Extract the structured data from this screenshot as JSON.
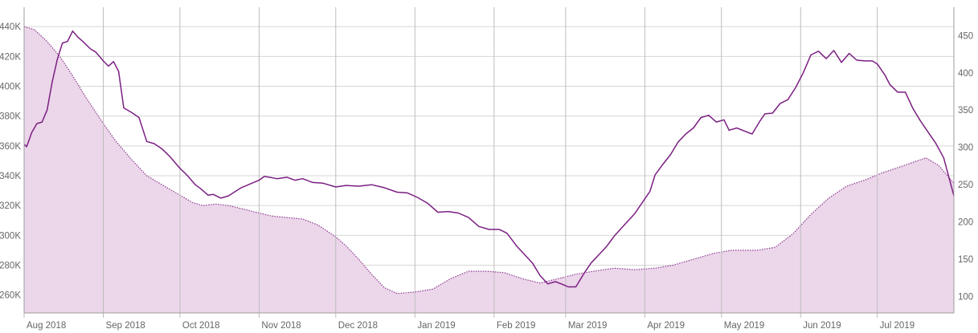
{
  "chart_data": {
    "type": "line",
    "colors": {
      "line": "#7b1f82",
      "area_fill": "#ecd6ea",
      "area_stroke": "#8a3a8f"
    },
    "x_range": [
      "2018-08-01",
      "2019-07-31"
    ],
    "x_ticks": [
      {
        "date": "2018-08-01",
        "label": "Aug 2018"
      },
      {
        "date": "2018-09-01",
        "label": "Sep 2018"
      },
      {
        "date": "2018-10-01",
        "label": "Oct 2018"
      },
      {
        "date": "2018-11-01",
        "label": "Nov 2018"
      },
      {
        "date": "2018-12-01",
        "label": "Dec 2018"
      },
      {
        "date": "2019-01-01",
        "label": "Jan 2019"
      },
      {
        "date": "2019-02-01",
        "label": "Feb 2019"
      },
      {
        "date": "2019-03-01",
        "label": "Mar 2019"
      },
      {
        "date": "2019-04-01",
        "label": "Apr 2019"
      },
      {
        "date": "2019-05-01",
        "label": "May 2019"
      },
      {
        "date": "2019-06-01",
        "label": "Jun 2019"
      },
      {
        "date": "2019-07-01",
        "label": "Jul 2019"
      }
    ],
    "y_left": {
      "range": [
        248000,
        453000
      ],
      "ticks": [
        {
          "value": 260000,
          "label": "260K"
        },
        {
          "value": 280000,
          "label": "280K"
        },
        {
          "value": 300000,
          "label": "300K"
        },
        {
          "value": 320000,
          "label": "320K"
        },
        {
          "value": 340000,
          "label": "340K"
        },
        {
          "value": 360000,
          "label": "360K"
        },
        {
          "value": 380000,
          "label": "380K"
        },
        {
          "value": 400000,
          "label": "400K"
        },
        {
          "value": 420000,
          "label": "420K"
        },
        {
          "value": 440000,
          "label": "440K"
        }
      ]
    },
    "y_right": {
      "range": [
        78,
        488
      ],
      "ticks": [
        {
          "value": 100,
          "label": "100"
        },
        {
          "value": 150,
          "label": "150"
        },
        {
          "value": 200,
          "label": "200"
        },
        {
          "value": 250,
          "label": "250"
        },
        {
          "value": 300,
          "label": "300"
        },
        {
          "value": 350,
          "label": "350"
        },
        {
          "value": 400,
          "label": "400"
        },
        {
          "value": 450,
          "label": "450"
        }
      ]
    },
    "grid": true,
    "series": [
      {
        "style": "area",
        "axis": "left",
        "points": [
          [
            "2018-08-01",
            440000
          ],
          [
            "2018-08-05",
            438000
          ],
          [
            "2018-08-10",
            430000
          ],
          [
            "2018-08-15",
            420000
          ],
          [
            "2018-08-20",
            407000
          ],
          [
            "2018-08-25",
            393000
          ],
          [
            "2018-09-01",
            375000
          ],
          [
            "2018-09-06",
            363000
          ],
          [
            "2018-09-12",
            351000
          ],
          [
            "2018-09-18",
            340000
          ],
          [
            "2018-09-24",
            334000
          ],
          [
            "2018-10-01",
            327000
          ],
          [
            "2018-10-06",
            322000
          ],
          [
            "2018-10-10",
            320000
          ],
          [
            "2018-10-15",
            321000
          ],
          [
            "2018-10-20",
            320000
          ],
          [
            "2018-10-25",
            318000
          ],
          [
            "2018-11-01",
            315000
          ],
          [
            "2018-11-06",
            313000
          ],
          [
            "2018-11-12",
            312000
          ],
          [
            "2018-11-18",
            311000
          ],
          [
            "2018-11-24",
            307000
          ],
          [
            "2018-12-01",
            299000
          ],
          [
            "2018-12-05",
            293000
          ],
          [
            "2018-12-10",
            284000
          ],
          [
            "2018-12-15",
            274000
          ],
          [
            "2018-12-20",
            265000
          ],
          [
            "2018-12-25",
            261000
          ],
          [
            "2019-01-01",
            262000
          ],
          [
            "2019-01-08",
            264000
          ],
          [
            "2019-01-15",
            271000
          ],
          [
            "2019-01-22",
            276000
          ],
          [
            "2019-01-29",
            276000
          ],
          [
            "2019-02-05",
            275000
          ],
          [
            "2019-02-12",
            271000
          ],
          [
            "2019-02-19",
            268000
          ],
          [
            "2019-02-26",
            271000
          ],
          [
            "2019-03-05",
            274000
          ],
          [
            "2019-03-12",
            276000
          ],
          [
            "2019-03-20",
            278000
          ],
          [
            "2019-03-28",
            277000
          ],
          [
            "2019-04-05",
            278000
          ],
          [
            "2019-04-12",
            280000
          ],
          [
            "2019-04-20",
            284000
          ],
          [
            "2019-04-28",
            288000
          ],
          [
            "2019-05-05",
            290000
          ],
          [
            "2019-05-15",
            290000
          ],
          [
            "2019-05-22",
            292000
          ],
          [
            "2019-05-29",
            301000
          ],
          [
            "2019-06-05",
            314000
          ],
          [
            "2019-06-12",
            325000
          ],
          [
            "2019-06-19",
            333000
          ],
          [
            "2019-06-26",
            337000
          ],
          [
            "2019-07-03",
            342000
          ],
          [
            "2019-07-10",
            346000
          ],
          [
            "2019-07-15",
            349000
          ],
          [
            "2019-07-20",
            352000
          ],
          [
            "2019-07-25",
            347000
          ],
          [
            "2019-07-31",
            335000
          ]
        ]
      },
      {
        "style": "line",
        "axis": "right",
        "points": [
          [
            "2018-08-01",
            304
          ],
          [
            "2018-08-02",
            301
          ],
          [
            "2018-08-04",
            320
          ],
          [
            "2018-08-06",
            332
          ],
          [
            "2018-08-08",
            334
          ],
          [
            "2018-08-10",
            350
          ],
          [
            "2018-08-12",
            388
          ],
          [
            "2018-08-14",
            418
          ],
          [
            "2018-08-16",
            440
          ],
          [
            "2018-08-18",
            442
          ],
          [
            "2018-08-20",
            456
          ],
          [
            "2018-08-22",
            448
          ],
          [
            "2018-08-24",
            442
          ],
          [
            "2018-08-27",
            432
          ],
          [
            "2018-08-29",
            428
          ],
          [
            "2018-09-01",
            416
          ],
          [
            "2018-09-03",
            409
          ],
          [
            "2018-09-05",
            415
          ],
          [
            "2018-09-07",
            402
          ],
          [
            "2018-09-09",
            353
          ],
          [
            "2018-09-12",
            347
          ],
          [
            "2018-09-15",
            340
          ],
          [
            "2018-09-18",
            308
          ],
          [
            "2018-09-21",
            305
          ],
          [
            "2018-09-24",
            298
          ],
          [
            "2018-09-27",
            288
          ],
          [
            "2018-10-01",
            272
          ],
          [
            "2018-10-04",
            262
          ],
          [
            "2018-10-07",
            250
          ],
          [
            "2018-10-09",
            245
          ],
          [
            "2018-10-12",
            236
          ],
          [
            "2018-10-14",
            237
          ],
          [
            "2018-10-17",
            232
          ],
          [
            "2018-10-20",
            235
          ],
          [
            "2018-10-25",
            246
          ],
          [
            "2018-11-01",
            256
          ],
          [
            "2018-11-03",
            261
          ],
          [
            "2018-11-05",
            260
          ],
          [
            "2018-11-08",
            258
          ],
          [
            "2018-11-12",
            260
          ],
          [
            "2018-11-15",
            256
          ],
          [
            "2018-11-18",
            258
          ],
          [
            "2018-11-22",
            253
          ],
          [
            "2018-11-26",
            252
          ],
          [
            "2018-12-01",
            247
          ],
          [
            "2018-12-05",
            249
          ],
          [
            "2018-12-10",
            248
          ],
          [
            "2018-12-15",
            250
          ],
          [
            "2018-12-20",
            246
          ],
          [
            "2018-12-25",
            240
          ],
          [
            "2018-12-29",
            239
          ],
          [
            "2019-01-02",
            233
          ],
          [
            "2019-01-06",
            225
          ],
          [
            "2019-01-10",
            213
          ],
          [
            "2019-01-14",
            214
          ],
          [
            "2019-01-18",
            212
          ],
          [
            "2019-01-22",
            206
          ],
          [
            "2019-01-26",
            194
          ],
          [
            "2019-01-30",
            190
          ],
          [
            "2019-02-03",
            190
          ],
          [
            "2019-02-06",
            185
          ],
          [
            "2019-02-10",
            167
          ],
          [
            "2019-02-13",
            156
          ],
          [
            "2019-02-16",
            145
          ],
          [
            "2019-02-19",
            128
          ],
          [
            "2019-02-22",
            117
          ],
          [
            "2019-02-25",
            120
          ],
          [
            "2019-02-28",
            116
          ],
          [
            "2019-03-02",
            113
          ],
          [
            "2019-03-05",
            113
          ],
          [
            "2019-03-08",
            130
          ],
          [
            "2019-03-11",
            145
          ],
          [
            "2019-03-14",
            156
          ],
          [
            "2019-03-17",
            167
          ],
          [
            "2019-03-20",
            181
          ],
          [
            "2019-03-24",
            196
          ],
          [
            "2019-03-28",
            211
          ],
          [
            "2019-04-01",
            231
          ],
          [
            "2019-04-03",
            241
          ],
          [
            "2019-04-05",
            263
          ],
          [
            "2019-04-08",
            277
          ],
          [
            "2019-04-11",
            290
          ],
          [
            "2019-04-14",
            307
          ],
          [
            "2019-04-17",
            318
          ],
          [
            "2019-04-20",
            326
          ],
          [
            "2019-04-23",
            340
          ],
          [
            "2019-04-26",
            343
          ],
          [
            "2019-04-29",
            334
          ],
          [
            "2019-05-02",
            337
          ],
          [
            "2019-05-04",
            323
          ],
          [
            "2019-05-07",
            326
          ],
          [
            "2019-05-10",
            322
          ],
          [
            "2019-05-13",
            318
          ],
          [
            "2019-05-16",
            335
          ],
          [
            "2019-05-18",
            345
          ],
          [
            "2019-05-21",
            346
          ],
          [
            "2019-05-24",
            359
          ],
          [
            "2019-05-27",
            364
          ],
          [
            "2019-05-30",
            380
          ],
          [
            "2019-06-02",
            400
          ],
          [
            "2019-06-05",
            424
          ],
          [
            "2019-06-08",
            429
          ],
          [
            "2019-06-11",
            419
          ],
          [
            "2019-06-14",
            430
          ],
          [
            "2019-06-17",
            414
          ],
          [
            "2019-06-20",
            426
          ],
          [
            "2019-06-23",
            417
          ],
          [
            "2019-06-26",
            416
          ],
          [
            "2019-06-29",
            416
          ],
          [
            "2019-07-01",
            412
          ],
          [
            "2019-07-04",
            397
          ],
          [
            "2019-07-06",
            384
          ],
          [
            "2019-07-09",
            374
          ],
          [
            "2019-07-12",
            374
          ],
          [
            "2019-07-15",
            352
          ],
          [
            "2019-07-18",
            335
          ],
          [
            "2019-07-21",
            320
          ],
          [
            "2019-07-24",
            305
          ],
          [
            "2019-07-27",
            286
          ],
          [
            "2019-07-31",
            235
          ]
        ]
      }
    ]
  }
}
